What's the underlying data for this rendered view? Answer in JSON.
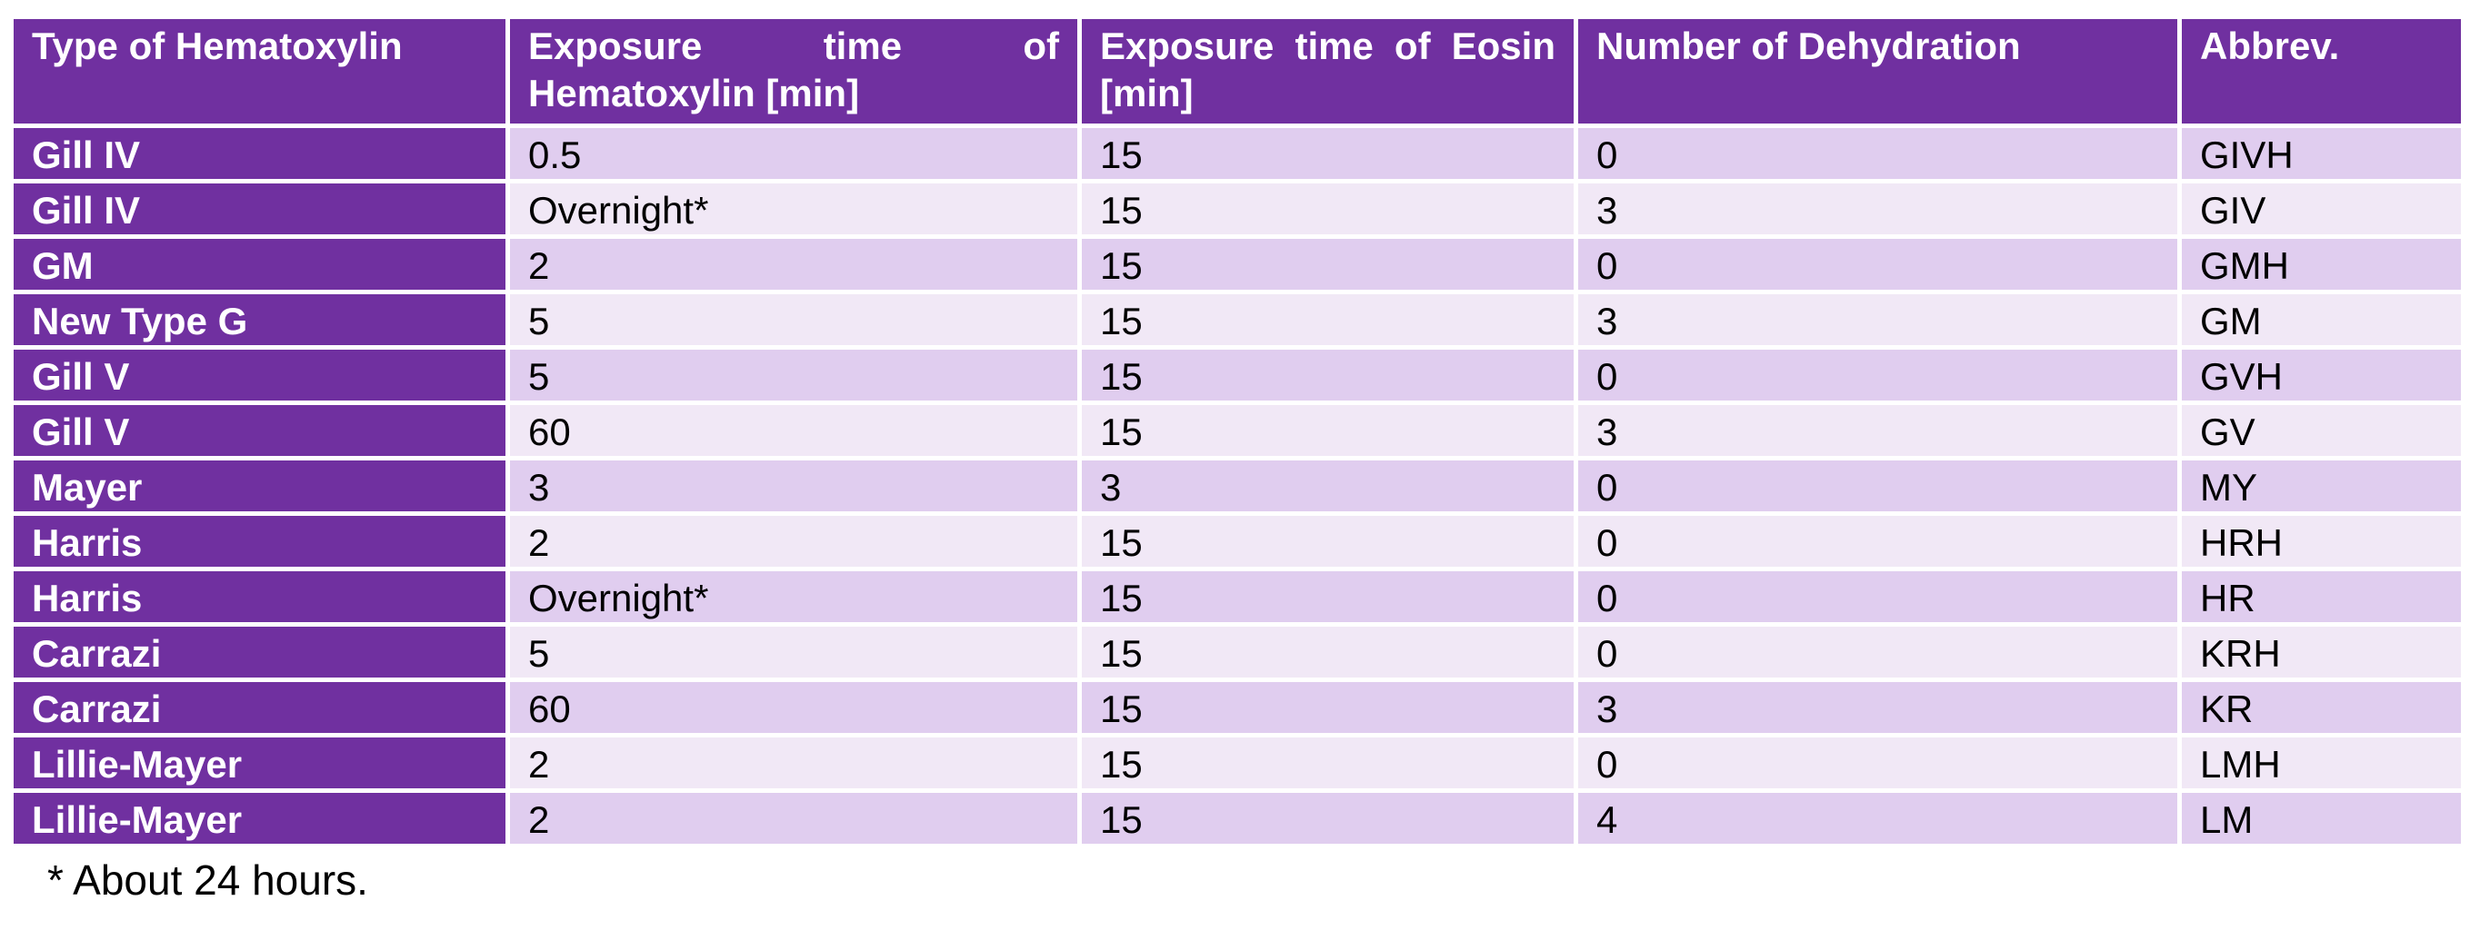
{
  "table": {
    "headers": [
      "Type of Hematoxylin",
      "Exposure time of Hematoxylin [min]",
      "Exposure time of Eosin [min]",
      "Number of Dehydration",
      "Abbrev."
    ],
    "rows": [
      [
        "Gill IV",
        "0.5",
        "15",
        "0",
        "GIVH"
      ],
      [
        "Gill IV",
        "Overnight*",
        "15",
        "3",
        "GIV"
      ],
      [
        "GM",
        "2",
        "15",
        "0",
        "GMH"
      ],
      [
        "New Type G",
        "5",
        "15",
        "3",
        "GM"
      ],
      [
        "Gill V",
        "5",
        "15",
        "0",
        "GVH"
      ],
      [
        "Gill V",
        "60",
        "15",
        "3",
        "GV"
      ],
      [
        "Mayer",
        "3",
        "3",
        "0",
        "MY"
      ],
      [
        "Harris",
        "2",
        "15",
        "0",
        "HRH"
      ],
      [
        "Harris",
        "Overnight*",
        "15",
        "0",
        "HR"
      ],
      [
        "Carrazi",
        "5",
        "15",
        "0",
        "KRH"
      ],
      [
        "Carrazi",
        "60",
        "15",
        "3",
        "KR"
      ],
      [
        "Lillie-Mayer",
        "2",
        "15",
        "0",
        "LMH"
      ],
      [
        "Lillie-Mayer",
        "2",
        "15",
        "4",
        "LM"
      ]
    ]
  },
  "footnote": "* About 24 hours.",
  "colors": {
    "header_bg": "#7030a0",
    "first_col_bg": "#7030a0",
    "row_odd_bg": "#e0cdef",
    "row_even_bg": "#f1e8f6",
    "border": "#ffffff"
  }
}
